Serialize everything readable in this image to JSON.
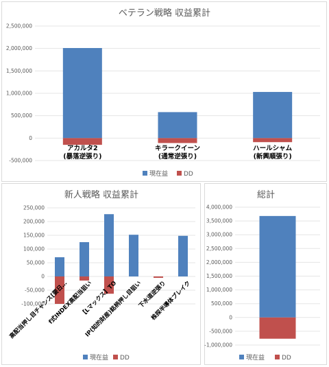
{
  "colors": {
    "current": "#4f81bd",
    "dd": "#c0504d"
  },
  "charts": {
    "top": {
      "title": "ベテラン戦略 収益累計",
      "yticks": [
        "2,500,000",
        "2,000,000",
        "1,500,000",
        "1,000,000",
        "500,000",
        "0",
        "-500,000"
      ],
      "legend": {
        "current": "現在益",
        "dd": "DD"
      }
    },
    "bl": {
      "title": "新人戦略 収益累計",
      "yticks": [
        "250,000",
        "200,000",
        "150,000",
        "100,000",
        "50,000",
        "0",
        "-50,000",
        "-100,000"
      ],
      "legend": {
        "current": "現在益",
        "dd": "DD"
      }
    },
    "br": {
      "title": "総計",
      "yticks": [
        "4,000,000",
        "3,500,000",
        "3,000,000",
        "2,500,000",
        "2,000,000",
        "1,500,000",
        "1,000,000",
        "500,000",
        "0",
        "-500,000",
        "-1,000,000"
      ],
      "legend": {
        "current": "現在益",
        "dd": "DD"
      }
    }
  },
  "chart_data": [
    {
      "type": "bar",
      "title": "ベテラン戦略 収益累計",
      "categories": [
        [
          "アカルタ2",
          "(暴落逆張り)"
        ],
        [
          "キラークイーン",
          "(通常逆張り)"
        ],
        [
          "ハールシャム",
          "(新興順張り)"
        ]
      ],
      "series": [
        {
          "name": "現在益",
          "values": [
            2010000,
            580000,
            1030000
          ]
        },
        {
          "name": "DD",
          "values": [
            -150000,
            -110000,
            -90000
          ]
        }
      ],
      "ylim": [
        -500000,
        2500000
      ],
      "grid": true,
      "legend": "bottom"
    },
    {
      "type": "bar",
      "title": "新人戦略 収益累計",
      "categories": [
        "高配当押し目チャンス[要日…",
        "f式INDEX高配当狙い",
        "【Lマックス】TO",
        "IP(知的財産)銘柄押し目狙い",
        "下水道逆張り",
        "株探半導体ブレイク"
      ],
      "series": [
        {
          "name": "現在益",
          "values": [
            70000,
            125000,
            227000,
            152000,
            0,
            148000
          ]
        },
        {
          "name": "DD",
          "values": [
            -100000,
            -15000,
            -63000,
            0,
            -5000,
            0
          ]
        }
      ],
      "ylim": [
        -100000,
        250000
      ],
      "grid": true,
      "legend": "bottom"
    },
    {
      "type": "bar",
      "title": "総計",
      "categories": [
        ""
      ],
      "series": [
        {
          "name": "現在益",
          "values": [
            3680000
          ]
        },
        {
          "name": "DD",
          "values": [
            -770000
          ]
        }
      ],
      "ylim": [
        -1000000,
        4000000
      ],
      "grid": true,
      "legend": "bottom"
    }
  ]
}
